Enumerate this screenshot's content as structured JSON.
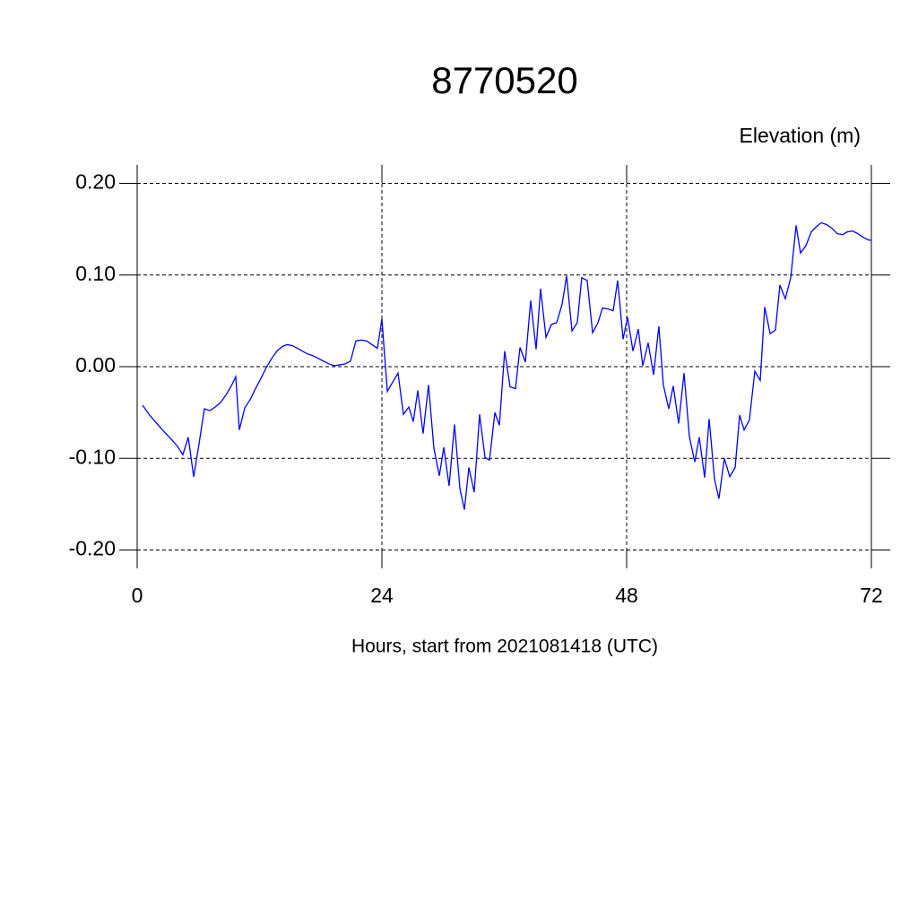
{
  "chart_data": {
    "type": "line",
    "title": "8770520",
    "y_label": "Elevation (m)",
    "x_label": "Hours, start from 2021081418 (UTC)",
    "color": "#0000ff",
    "grid": true,
    "xlim": [
      0,
      72
    ],
    "xticks": [
      0,
      24,
      48,
      72
    ],
    "ylim": [
      -0.22,
      0.22
    ],
    "yticks": [
      {
        "value": 0.2,
        "label": "0.20"
      },
      {
        "value": 0.1,
        "label": "0.10"
      },
      {
        "value": 0,
        "label": "0.00"
      },
      {
        "value": -0.1,
        "label": "-0.10"
      },
      {
        "value": -0.2,
        "label": "-0.20"
      }
    ],
    "x": [
      0.53,
      1.23,
      1.93,
      2.64,
      3.34,
      3.96,
      4.48,
      5.01,
      5.54,
      6.07,
      6.59,
      7.12,
      7.65,
      8.18,
      8.7,
      9.23,
      9.67,
      10.02,
      10.55,
      11.08,
      11.6,
      12.13,
      12.66,
      13.19,
      13.71,
      14.24,
      14.68,
      15.21,
      15.74,
      16.18,
      16.7,
      17.23,
      17.76,
      18.29,
      18.81,
      19.34,
      19.87,
      20.4,
      20.92,
      21.45,
      21.98,
      22.51,
      23.03,
      23.56,
      24.0,
      24.53,
      25.05,
      25.58,
      26.11,
      26.64,
      27.08,
      27.52,
      28.04,
      28.57,
      29.1,
      29.63,
      30.07,
      30.59,
      31.12,
      31.65,
      32.09,
      32.53,
      33.05,
      33.58,
      34.11,
      34.55,
      35.08,
      35.52,
      36.04,
      36.57,
      37.1,
      37.54,
      38.07,
      38.59,
      39.12,
      39.56,
      40.09,
      40.62,
      41.14,
      41.67,
      42.11,
      42.64,
      43.16,
      43.6,
      44.13,
      44.66,
      45.19,
      45.63,
      46.15,
      46.68,
      47.12,
      47.65,
      48.09,
      48.62,
      49.14,
      49.58,
      50.11,
      50.64,
      51.16,
      51.6,
      52.13,
      52.57,
      53.1,
      53.63,
      54.15,
      54.68,
      55.12,
      55.65,
      56.09,
      56.62,
      57.05,
      57.58,
      58.11,
      58.64,
      59.08,
      59.52,
      60.04,
      60.57,
      61.1,
      61.54,
      62.07,
      62.59,
      63.03,
      63.56,
      64.09,
      64.62,
      65.05,
      65.58,
      66.11,
      66.64,
      67.08,
      67.6,
      68.13,
      68.66,
      69.19,
      69.63,
      70.15,
      70.68,
      71.21,
      71.74,
      72.0
    ],
    "values": [
      -0.042,
      -0.053,
      -0.062,
      -0.071,
      -0.079,
      -0.087,
      -0.096,
      -0.077,
      -0.12,
      -0.084,
      -0.046,
      -0.048,
      -0.044,
      -0.039,
      -0.031,
      -0.021,
      -0.011,
      -0.069,
      -0.045,
      -0.036,
      -0.024,
      -0.013,
      -0.001,
      0.009,
      0.017,
      0.022,
      0.024,
      0.023,
      0.02,
      0.017,
      0.014,
      0.012,
      0.009,
      0.006,
      0.003,
      0.001,
      0.002,
      0.003,
      0.006,
      0.028,
      0.029,
      0.028,
      0.024,
      0.02,
      0.052,
      -0.027,
      -0.017,
      -0.007,
      -0.052,
      -0.044,
      -0.06,
      -0.026,
      -0.073,
      -0.02,
      -0.089,
      -0.119,
      -0.088,
      -0.13,
      -0.063,
      -0.133,
      -0.156,
      -0.11,
      -0.137,
      -0.052,
      -0.099,
      -0.102,
      -0.05,
      -0.064,
      0.017,
      -0.022,
      -0.024,
      0.021,
      0.005,
      0.072,
      0.019,
      0.085,
      0.032,
      0.046,
      0.048,
      0.068,
      0.099,
      0.039,
      0.048,
      0.097,
      0.094,
      0.037,
      0.048,
      0.064,
      0.063,
      0.061,
      0.094,
      0.03,
      0.054,
      0.017,
      0.041,
      0.001,
      0.026,
      -0.009,
      0.044,
      -0.02,
      -0.046,
      -0.021,
      -0.062,
      -0.007,
      -0.076,
      -0.104,
      -0.077,
      -0.121,
      -0.057,
      -0.123,
      -0.144,
      -0.1,
      -0.12,
      -0.11,
      -0.053,
      -0.069,
      -0.058,
      -0.005,
      -0.015,
      0.065,
      0.036,
      0.04,
      0.089,
      0.074,
      0.097,
      0.154,
      0.124,
      0.132,
      0.147,
      0.153,
      0.157,
      0.155,
      0.151,
      0.145,
      0.144,
      0.147,
      0.148,
      0.145,
      0.141,
      0.138,
      0.138
    ]
  }
}
